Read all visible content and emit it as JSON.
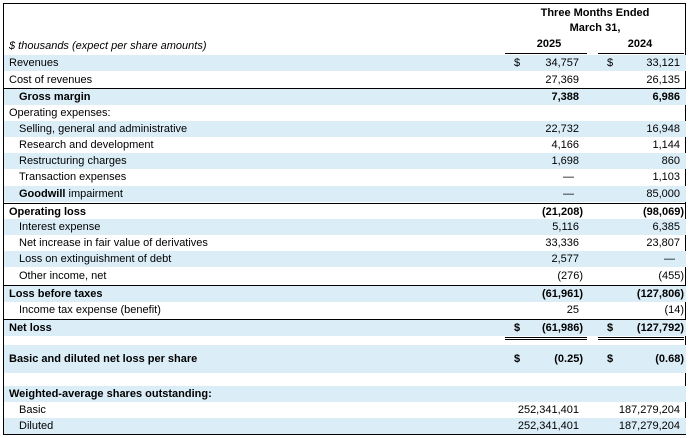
{
  "header": {
    "period": "Three Months Ended",
    "period2": "March 31,",
    "unit_note": "$ thousands (expect per share amounts)",
    "col_2025": "2025",
    "col_2024": "2024"
  },
  "rows": [
    {
      "label": "Revenues",
      "cur_a": "$",
      "v2025": "34,757",
      "cur_b": "$",
      "v2024": "33,121"
    },
    {
      "label": "Cost of revenues",
      "v2025": "27,369",
      "v2024": "26,135"
    },
    {
      "label": "Gross margin",
      "v2025": "7,388",
      "v2024": "6,986"
    },
    {
      "label": "Operating expenses:"
    },
    {
      "label": "Selling, general and administrative",
      "v2025": "22,732",
      "v2024": "16,948"
    },
    {
      "label": "Research and development",
      "v2025": "4,166",
      "v2024": "1,144"
    },
    {
      "label": "Restructuring charges",
      "v2025": "1,698",
      "v2024": "860"
    },
    {
      "label": "Transaction expenses",
      "v2025": "—",
      "v2024": "1,103"
    },
    {
      "label_bold": "Goodwill",
      "label_rest": " impairment",
      "v2025": "—",
      "v2024": "85,000"
    },
    {
      "label": "Operating loss",
      "v2025": "(21,208)",
      "v2024": "(98,069)"
    },
    {
      "label": "Interest expense",
      "v2025": "5,116",
      "v2024": "6,385"
    },
    {
      "label": "Net increase in fair value of derivatives",
      "v2025": "33,336",
      "v2024": "23,807"
    },
    {
      "label": "Loss on extinguishment of debt",
      "v2025": "2,577",
      "v2024": "—"
    },
    {
      "label": "Other income, net",
      "v2025": "(276)",
      "v2024": "(455)"
    },
    {
      "label": "Loss before taxes",
      "v2025": "(61,961)",
      "v2024": "(127,806)"
    },
    {
      "label": "Income tax expense (benefit)",
      "v2025": "25",
      "v2024": "(14)"
    },
    {
      "label": "Net loss",
      "cur_a": "$",
      "v2025": "(61,986)",
      "cur_b": "$",
      "v2024": "(127,792)"
    },
    {
      "label": "Basic and diluted net loss per share",
      "cur_a": "$",
      "v2025": "(0.25)",
      "cur_b": "$",
      "v2024": "(0.68)"
    },
    {
      "label": "Weighted-average shares outstanding:"
    },
    {
      "label": "Basic",
      "v2025": "252,341,401",
      "v2024": "187,279,204"
    },
    {
      "label": "Diluted",
      "v2025": "252,341,401",
      "v2024": "187,279,204"
    }
  ]
}
